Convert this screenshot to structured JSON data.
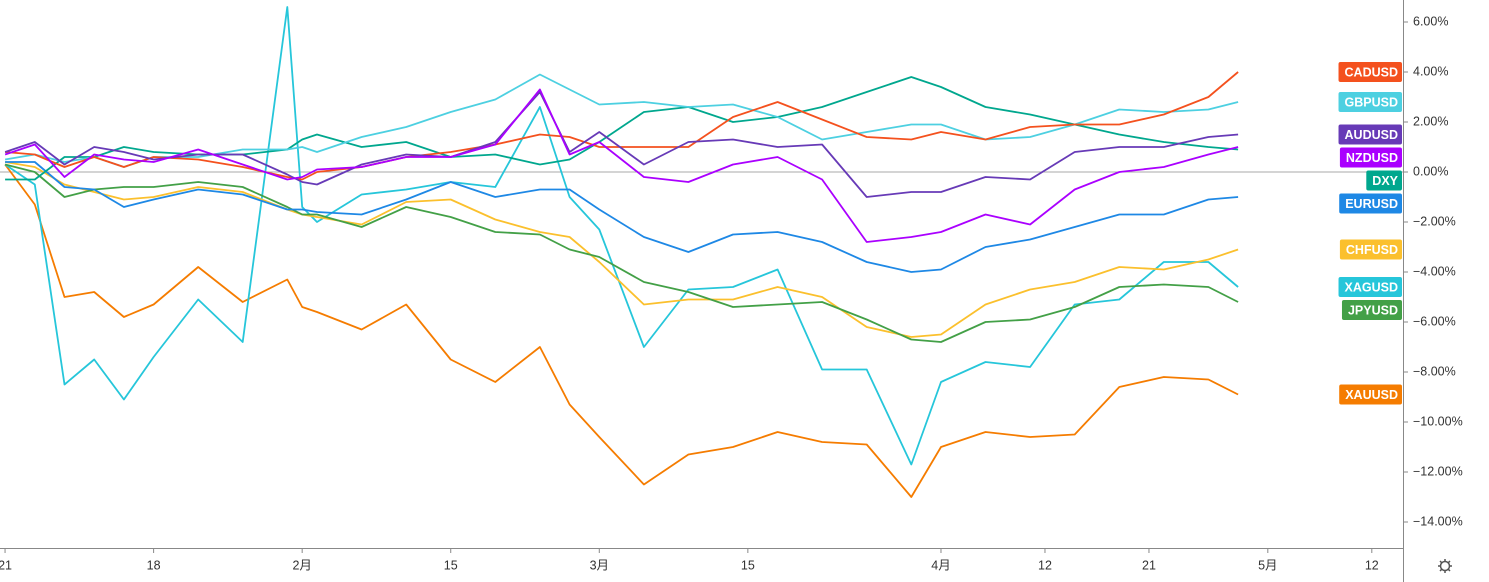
{
  "chart_data": {
    "type": "line",
    "x": [
      0,
      2,
      4,
      6,
      8,
      10,
      13,
      16,
      19,
      20,
      21,
      24,
      27,
      30,
      33,
      36,
      38,
      40,
      43,
      46,
      49,
      52,
      55,
      58,
      61,
      63,
      66,
      69,
      72,
      75,
      78,
      81,
      83
    ],
    "xlim": [
      -0.34,
      94.1
    ],
    "xticks": [
      {
        "value": 0,
        "label": "21"
      },
      {
        "value": 10,
        "label": "18"
      },
      {
        "value": 20,
        "label": "2月"
      },
      {
        "value": 30,
        "label": "15"
      },
      {
        "value": 40,
        "label": "3月"
      },
      {
        "value": 50,
        "label": "15"
      },
      {
        "value": 63,
        "label": "4月"
      },
      {
        "value": 70,
        "label": "12"
      },
      {
        "value": 77,
        "label": "21"
      },
      {
        "value": 85,
        "label": "5月"
      },
      {
        "value": 92,
        "label": "12"
      }
    ],
    "ylim": [
      -15.04,
      6.88
    ],
    "yticks": [
      {
        "value": 6,
        "label": "6.00%"
      },
      {
        "value": 4,
        "label": "4.00%"
      },
      {
        "value": 2,
        "label": "2.00%"
      },
      {
        "value": 0,
        "label": "0.00%"
      },
      {
        "value": -2,
        "label": "−2.00%"
      },
      {
        "value": -4,
        "label": "−4.00%"
      },
      {
        "value": -6,
        "label": "−6.00%"
      },
      {
        "value": -8,
        "label": "−8.00%"
      },
      {
        "value": -10,
        "label": "−10.00%"
      },
      {
        "value": -12,
        "label": "−12.00%"
      },
      {
        "value": -14,
        "label": "−14.00%"
      }
    ],
    "zero_line": true,
    "series": [
      {
        "name": "XAUUSD",
        "color": "#f57c00",
        "values": [
          0.3,
          -1.3,
          -5.0,
          -4.8,
          -5.8,
          -5.3,
          -3.8,
          -5.2,
          -4.3,
          -5.4,
          -5.6,
          -6.3,
          -5.3,
          -7.5,
          -8.4,
          -7.0,
          -9.3,
          -10.6,
          -12.5,
          -11.3,
          -11.0,
          -10.4,
          -10.8,
          -10.9,
          -13.0,
          -11.0,
          -10.4,
          -10.6,
          -10.5,
          -8.6,
          -8.2,
          -8.3,
          -8.9
        ]
      },
      {
        "name": "XAGUSD",
        "color": "#26c6da",
        "values": [
          0.3,
          -0.5,
          -8.5,
          -7.5,
          -9.1,
          -7.4,
          -5.1,
          -6.8,
          6.6,
          -1.4,
          -2.0,
          -0.9,
          -0.7,
          -0.4,
          -0.6,
          2.6,
          -1.0,
          -2.3,
          -7.0,
          -4.7,
          -4.6,
          -3.9,
          -7.9,
          -7.9,
          -11.7,
          -8.4,
          -7.6,
          -7.8,
          -5.3,
          -5.1,
          -3.6,
          -3.6,
          -4.6
        ]
      },
      {
        "name": "CHFUSD",
        "color": "#fbc02d",
        "values": [
          0.4,
          0.2,
          -0.5,
          -0.8,
          -1.1,
          -1.0,
          -0.6,
          -0.8,
          -1.5,
          -1.7,
          -1.8,
          -2.1,
          -1.2,
          -1.1,
          -1.9,
          -2.4,
          -2.6,
          -3.6,
          -5.3,
          -5.1,
          -5.1,
          -4.6,
          -5.0,
          -6.2,
          -6.6,
          -6.5,
          -5.3,
          -4.7,
          -4.4,
          -3.8,
          -3.9,
          -3.5,
          -3.1
        ]
      },
      {
        "name": "JPYUSD",
        "color": "#43a047",
        "values": [
          0.3,
          0.0,
          -1.0,
          -0.7,
          -0.6,
          -0.6,
          -0.4,
          -0.6,
          -1.4,
          -1.7,
          -1.7,
          -2.2,
          -1.4,
          -1.8,
          -2.4,
          -2.5,
          -3.1,
          -3.4,
          -4.4,
          -4.8,
          -5.4,
          -5.3,
          -5.2,
          -5.9,
          -6.7,
          -6.8,
          -6.0,
          -5.9,
          -5.4,
          -4.6,
          -4.5,
          -4.6,
          -5.2
        ]
      },
      {
        "name": "EURUSD",
        "color": "#1e88e5",
        "values": [
          0.4,
          0.4,
          -0.6,
          -0.7,
          -1.4,
          -1.1,
          -0.7,
          -0.9,
          -1.5,
          -1.5,
          -1.6,
          -1.7,
          -1.1,
          -0.4,
          -1.0,
          -0.7,
          -0.7,
          -1.5,
          -2.6,
          -3.2,
          -2.5,
          -2.4,
          -2.8,
          -3.6,
          -4.0,
          -3.9,
          -3.0,
          -2.7,
          -2.2,
          -1.7,
          -1.7,
          -1.1,
          -1.0
        ]
      },
      {
        "name": "DXY",
        "color": "#00a78e",
        "values": [
          -0.3,
          -0.3,
          0.6,
          0.6,
          1.0,
          0.8,
          0.7,
          0.7,
          0.9,
          1.3,
          1.5,
          1.0,
          1.2,
          0.6,
          0.7,
          0.3,
          0.5,
          1.2,
          2.4,
          2.6,
          2.0,
          2.2,
          2.6,
          3.2,
          3.8,
          3.4,
          2.6,
          2.3,
          1.9,
          1.5,
          1.2,
          1.0,
          0.9
        ]
      },
      {
        "name": "GBPUSD",
        "color": "#4dd0e1",
        "values": [
          0.5,
          0.7,
          0.4,
          0.6,
          0.2,
          0.6,
          0.6,
          0.9,
          0.9,
          1.0,
          0.8,
          1.4,
          1.8,
          2.4,
          2.9,
          3.9,
          3.3,
          2.7,
          2.8,
          2.6,
          2.7,
          2.2,
          1.3,
          1.6,
          1.9,
          1.9,
          1.3,
          1.4,
          1.9,
          2.5,
          2.4,
          2.5,
          2.8
        ]
      },
      {
        "name": "CADUSD",
        "color": "#f4511e",
        "values": [
          0.8,
          0.7,
          0.2,
          0.6,
          0.2,
          0.6,
          0.5,
          0.2,
          -0.2,
          -0.3,
          0.0,
          0.2,
          0.6,
          0.8,
          1.1,
          1.5,
          1.4,
          1.0,
          1.0,
          1.0,
          2.2,
          2.8,
          2.1,
          1.4,
          1.3,
          1.6,
          1.3,
          1.8,
          1.9,
          1.9,
          2.3,
          3.0,
          4.0
        ]
      },
      {
        "name": "AUDUSD",
        "color": "#673ab7",
        "values": [
          0.8,
          1.2,
          0.3,
          1.0,
          0.8,
          0.5,
          0.7,
          0.7,
          -0.1,
          -0.4,
          -0.5,
          0.3,
          0.7,
          0.6,
          1.2,
          3.2,
          0.8,
          1.6,
          0.3,
          1.2,
          1.3,
          1.0,
          1.1,
          -1.0,
          -0.8,
          -0.8,
          -0.2,
          -0.3,
          0.8,
          1.0,
          1.0,
          1.4,
          1.5
        ]
      },
      {
        "name": "NZDUSD",
        "color": "#aa00ff",
        "values": [
          0.7,
          1.1,
          -0.2,
          0.7,
          0.5,
          0.4,
          0.9,
          0.3,
          -0.3,
          -0.2,
          0.1,
          0.2,
          0.6,
          0.6,
          1.1,
          3.3,
          0.7,
          1.2,
          -0.2,
          -0.4,
          0.3,
          0.6,
          -0.3,
          -2.8,
          -2.6,
          -2.4,
          -1.7,
          -2.1,
          -0.7,
          0.0,
          0.2,
          0.7,
          1.0
        ]
      }
    ]
  }
}
